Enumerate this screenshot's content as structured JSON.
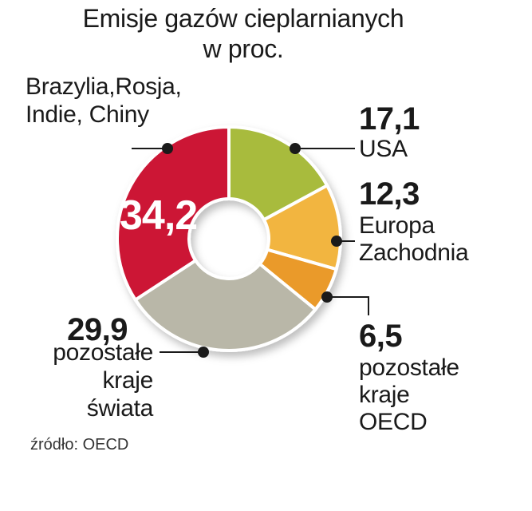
{
  "title_line1": "Emisje gazów cieplarnianych",
  "title_line2": "w proc.",
  "source": "źródło: OECD",
  "chart_data": {
    "type": "pie",
    "style": "donut",
    "title": "Emisje gazów cieplarnianych w proc.",
    "slices": [
      {
        "label": "USA",
        "value": 17.1,
        "value_text": "17,1",
        "color": "#a8bb3d"
      },
      {
        "label": "Europa Zachodnia",
        "value": 12.3,
        "value_text": "12,3",
        "color": "#f2b541"
      },
      {
        "label": "pozostałe kraje OECD",
        "value": 6.5,
        "value_text": "6,5",
        "color": "#ea9a2a"
      },
      {
        "label": "pozostałe kraje świata",
        "value": 29.9,
        "value_text": "29,9",
        "color": "#b9b7a8"
      },
      {
        "label": "Brazylia,Rosja, Indie, Chiny",
        "value": 34.2,
        "value_text": "34,2",
        "color": "#cc1236"
      }
    ]
  },
  "labels": {
    "usa": {
      "value": "17,1",
      "name": "USA"
    },
    "europe": {
      "value": "12,3",
      "line1": "Europa",
      "line2": "Zachodnia"
    },
    "oecd": {
      "value": "6,5",
      "line1": "pozostałe",
      "line2": "kraje",
      "line3": "OECD"
    },
    "world": {
      "value": "29,9",
      "line1": "pozostałe",
      "line2": "kraje",
      "line3": "świata"
    },
    "bric": {
      "value": "34,2",
      "line1": "Brazylia,Rosja,",
      "line2": "Indie, Chiny"
    }
  }
}
